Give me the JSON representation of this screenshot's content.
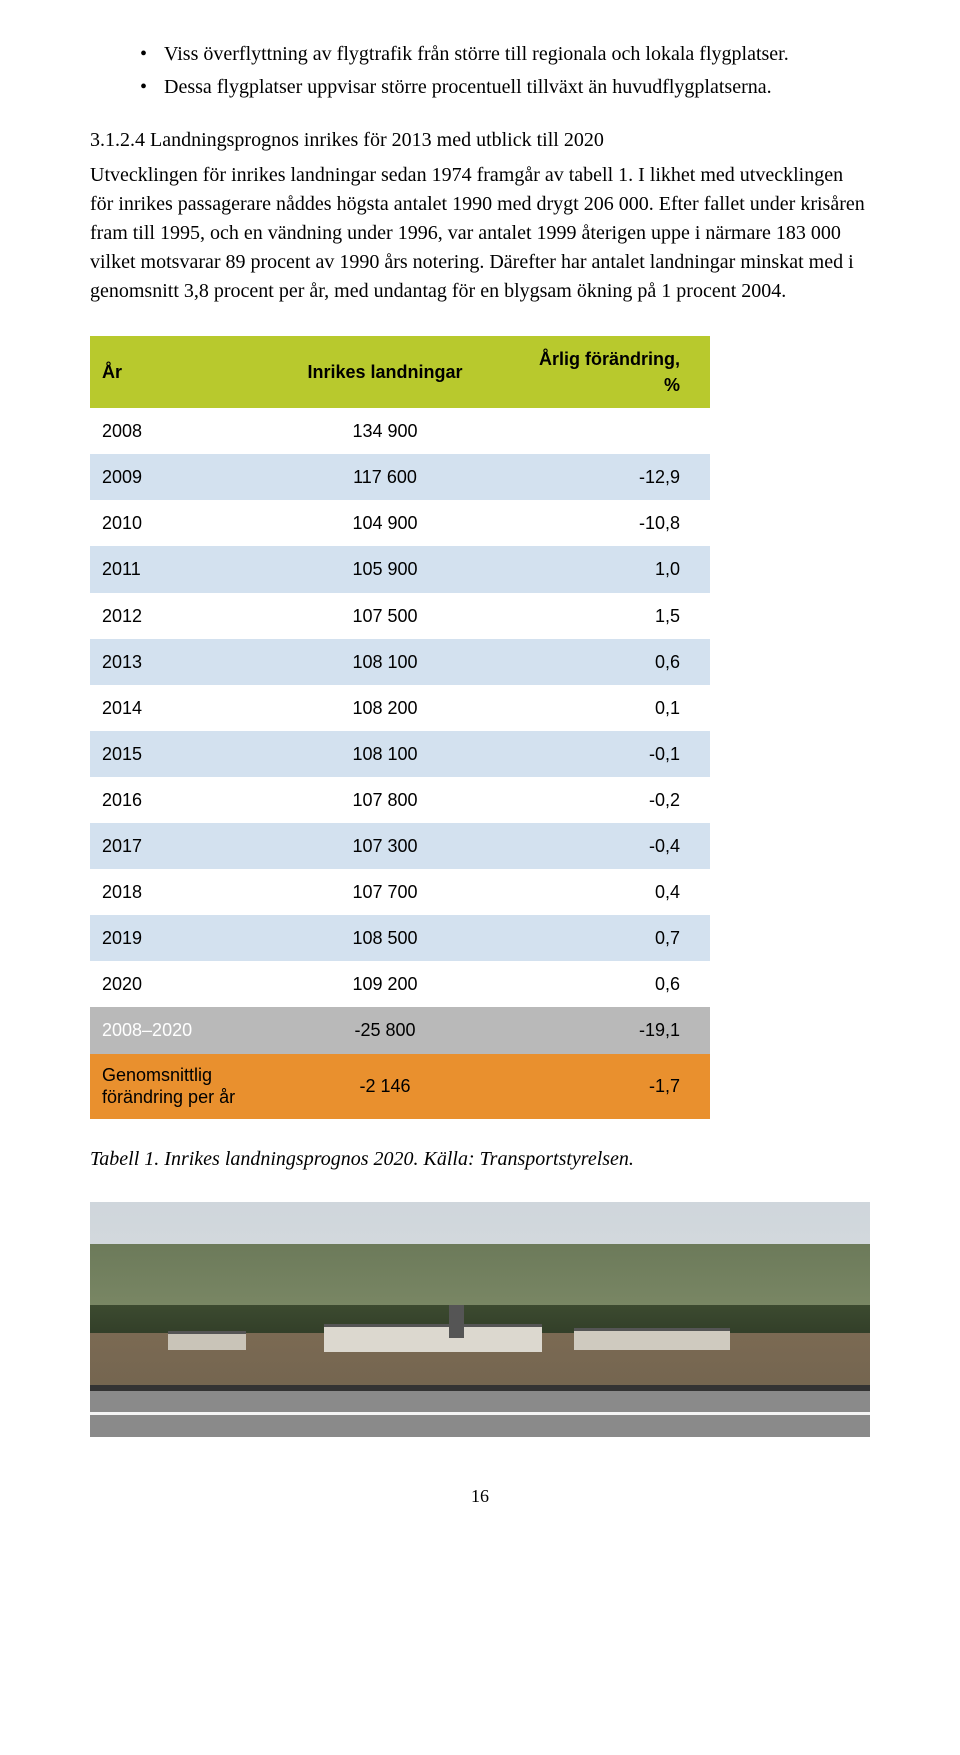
{
  "bullets": [
    "Viss överflyttning av flygtrafik från större till regionala och lokala flygplatser.",
    "Dessa flygplatser uppvisar större procentuell tillväxt än huvudflygplatserna."
  ],
  "subhead": "3.1.2.4 Landningsprognos inrikes för 2013 med utblick till 2020",
  "paragraph": "Utvecklingen för inrikes landningar sedan 1974 framgår av tabell 1. I likhet med utvecklingen för inrikes passagerare nåddes högsta antalet 1990 med drygt 206 000. Efter fallet under krisåren fram till 1995, och en vändning under 1996, var antalet 1999 återigen uppe i närmare 183 000 vilket motsvarar 89 procent av 1990 års notering. Därefter har antalet landningar minskat med i genomsnitt 3,8 procent per år, med undantag för en blygsam ökning på 1 procent 2004.",
  "table": {
    "header_bg": "#b8c92d",
    "row_odd_bg": "#ffffff",
    "row_even_bg": "#d3e1ef",
    "footer1_bg": "#b9b9b9",
    "footer2_bg": "#e9902e",
    "columns": [
      "År",
      "Inrikes landningar",
      "Årlig förändring, %"
    ],
    "rows": [
      [
        "2008",
        "134 900",
        ""
      ],
      [
        "2009",
        "117 600",
        "-12,9"
      ],
      [
        "2010",
        "104 900",
        "-10,8"
      ],
      [
        "2011",
        "105 900",
        "1,0"
      ],
      [
        "2012",
        "107 500",
        "1,5"
      ],
      [
        "2013",
        "108 100",
        "0,6"
      ],
      [
        "2014",
        "108 200",
        "0,1"
      ],
      [
        "2015",
        "108 100",
        "-0,1"
      ],
      [
        "2016",
        "107 800",
        "-0,2"
      ],
      [
        "2017",
        "107 300",
        "-0,4"
      ],
      [
        "2018",
        "107 700",
        "0,4"
      ],
      [
        "2019",
        "108 500",
        "0,7"
      ],
      [
        "2020",
        "109 200",
        "0,6"
      ]
    ],
    "footer1": [
      "2008–2020",
      "-25 800",
      "-19,1"
    ],
    "footer2": [
      "Genomsnittlig förändring  per år",
      "-2 146",
      "-1,7"
    ]
  },
  "caption": "Tabell 1. Inrikes landningsprognos 2020. Källa: Transportstyrelsen.",
  "page_number": "16"
}
